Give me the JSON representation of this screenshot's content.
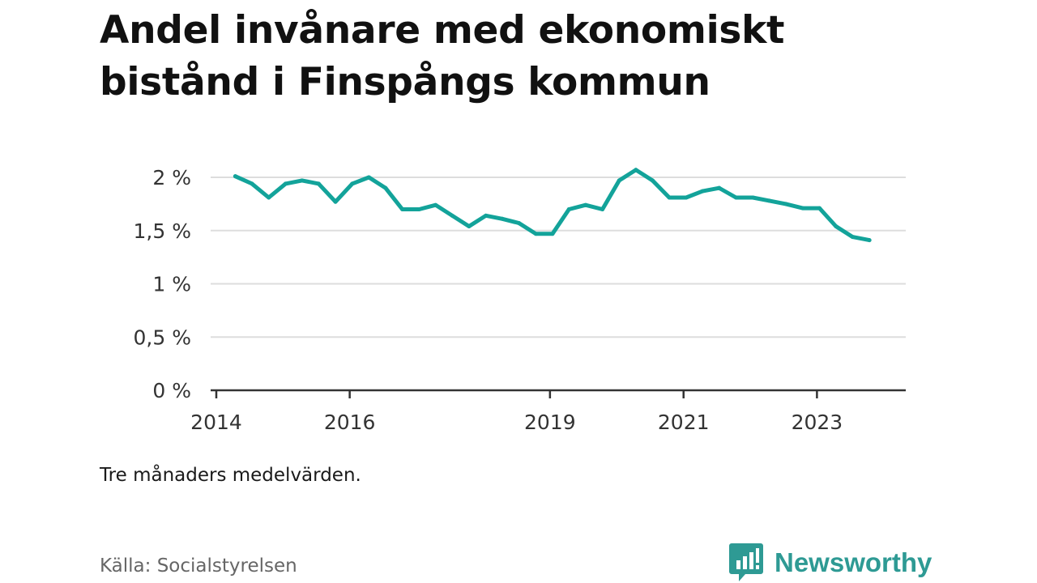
{
  "title": "Andel invånare med ekonomiskt bistånd i Finspångs kommun",
  "note": "Tre månaders medelvärden.",
  "source": "Källa: Socialstyrelsen",
  "brand": {
    "name": "Newsworthy",
    "icon": "bar-chart-speech-bubble-icon",
    "color": "#2e9a94"
  },
  "colors": {
    "line": "#13a39a",
    "grid": "#dddddd",
    "axis": "#333333"
  },
  "chart_data": {
    "type": "line",
    "title": "Andel invånare med ekonomiskt bistånd i Finspångs kommun",
    "xlabel": "",
    "ylabel": "",
    "y_unit": "%",
    "xlim": [
      "2013-12-01",
      "2024-05-01"
    ],
    "ylim": [
      0,
      2.1
    ],
    "grid": true,
    "x_ticks": [
      {
        "date": "2014-01-01",
        "label": "2014"
      },
      {
        "date": "2016-01-01",
        "label": "2016"
      },
      {
        "date": "2019-01-01",
        "label": "2019"
      },
      {
        "date": "2021-01-01",
        "label": "2021"
      },
      {
        "date": "2023-01-01",
        "label": "2023"
      }
    ],
    "y_ticks": [
      {
        "value": 0,
        "label": "0 %"
      },
      {
        "value": 0.5,
        "label": "0,5 %"
      },
      {
        "value": 1,
        "label": "1 %"
      },
      {
        "value": 1.5,
        "label": "1,5 %"
      },
      {
        "value": 2,
        "label": "2 %"
      }
    ],
    "series": [
      {
        "color": "#13a39a",
        "points": [
          {
            "x": "2014-04-15",
            "y": 2.01
          },
          {
            "x": "2014-07-15",
            "y": 1.94
          },
          {
            "x": "2014-10-15",
            "y": 1.81
          },
          {
            "x": "2015-01-15",
            "y": 1.94
          },
          {
            "x": "2015-04-15",
            "y": 1.97
          },
          {
            "x": "2015-07-15",
            "y": 1.94
          },
          {
            "x": "2015-10-15",
            "y": 1.77
          },
          {
            "x": "2016-01-15",
            "y": 1.94
          },
          {
            "x": "2016-04-15",
            "y": 2.0
          },
          {
            "x": "2016-07-15",
            "y": 1.9
          },
          {
            "x": "2016-10-15",
            "y": 1.7
          },
          {
            "x": "2017-01-15",
            "y": 1.7
          },
          {
            "x": "2017-04-15",
            "y": 1.74
          },
          {
            "x": "2017-07-15",
            "y": 1.64
          },
          {
            "x": "2017-10-15",
            "y": 1.54
          },
          {
            "x": "2018-01-15",
            "y": 1.64
          },
          {
            "x": "2018-04-15",
            "y": 1.61
          },
          {
            "x": "2018-07-15",
            "y": 1.57
          },
          {
            "x": "2018-10-15",
            "y": 1.47
          },
          {
            "x": "2019-01-15",
            "y": 1.47
          },
          {
            "x": "2019-04-15",
            "y": 1.7
          },
          {
            "x": "2019-07-15",
            "y": 1.74
          },
          {
            "x": "2019-10-15",
            "y": 1.7
          },
          {
            "x": "2020-01-15",
            "y": 1.97
          },
          {
            "x": "2020-04-15",
            "y": 2.07
          },
          {
            "x": "2020-07-15",
            "y": 1.97
          },
          {
            "x": "2020-10-15",
            "y": 1.81
          },
          {
            "x": "2021-01-15",
            "y": 1.81
          },
          {
            "x": "2021-04-15",
            "y": 1.87
          },
          {
            "x": "2021-07-15",
            "y": 1.9
          },
          {
            "x": "2021-10-15",
            "y": 1.81
          },
          {
            "x": "2022-01-15",
            "y": 1.81
          },
          {
            "x": "2022-04-15",
            "y": 1.78
          },
          {
            "x": "2022-07-15",
            "y": 1.75
          },
          {
            "x": "2022-10-15",
            "y": 1.71
          },
          {
            "x": "2023-01-15",
            "y": 1.71
          },
          {
            "x": "2023-04-15",
            "y": 1.54
          },
          {
            "x": "2023-07-15",
            "y": 1.44
          },
          {
            "x": "2023-10-15",
            "y": 1.41
          }
        ]
      }
    ]
  }
}
